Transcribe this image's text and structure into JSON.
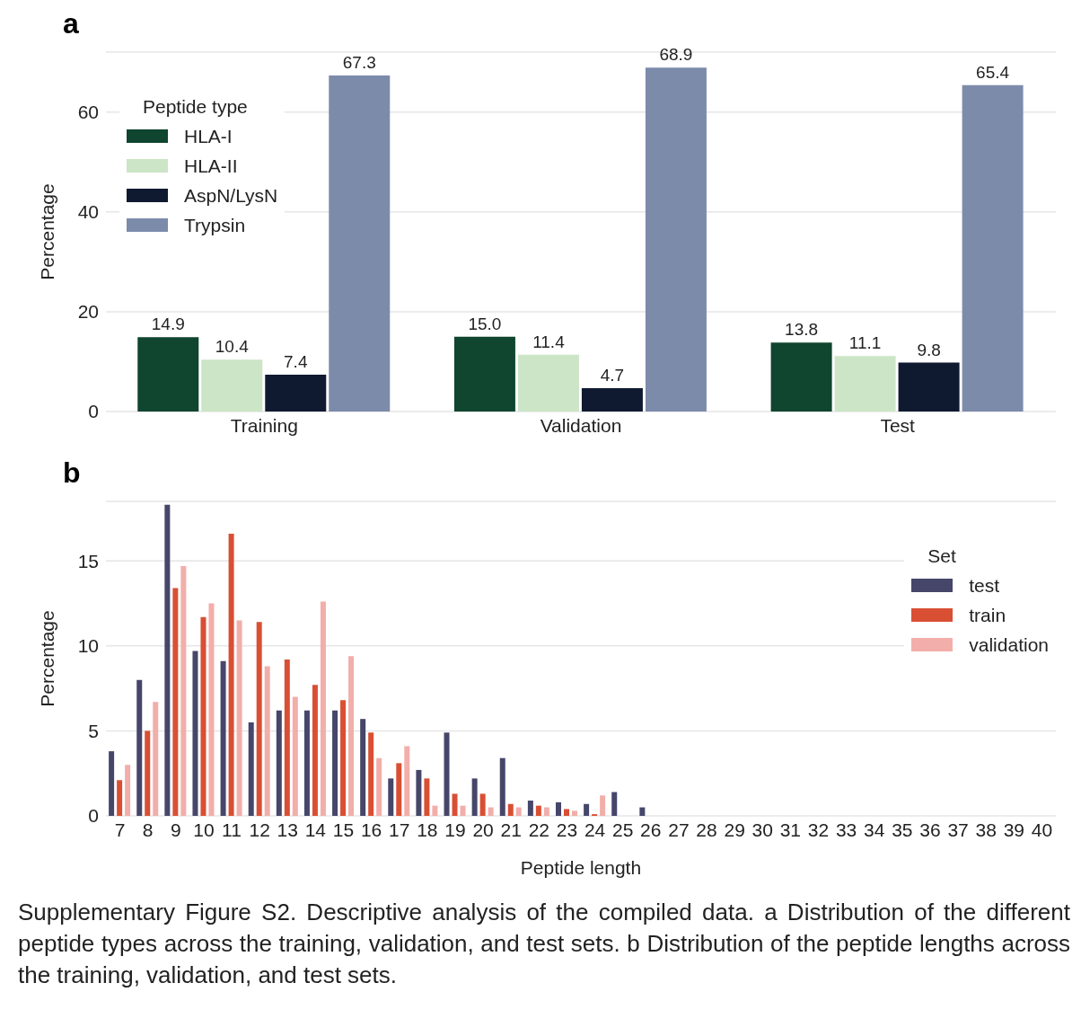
{
  "chart_data": [
    {
      "type": "bar",
      "title": "a",
      "ylabel": "Percentage",
      "categories": [
        "Training",
        "Validation",
        "Test"
      ],
      "legend_title": "Peptide type",
      "legend": "top left",
      "grid": "y",
      "ylim": [
        0,
        72
      ],
      "yticks": [
        0,
        20,
        40,
        60
      ],
      "series": [
        {
          "name": "HLA-I",
          "color": "#10452f",
          "values": [
            14.9,
            15.0,
            13.8
          ],
          "value_labels": [
            "14.9",
            "15.0",
            "13.8"
          ]
        },
        {
          "name": "HLA-II",
          "color": "#cce5c6",
          "values": [
            10.4,
            11.4,
            11.1
          ],
          "value_labels": [
            "10.4",
            "11.4",
            "11.1"
          ]
        },
        {
          "name": "AspN/LysN",
          "color": "#0f1a30",
          "values": [
            7.4,
            4.7,
            9.8
          ],
          "value_labels": [
            "7.4",
            "4.7",
            "9.8"
          ]
        },
        {
          "name": "Trypsin",
          "color": "#7d8bab",
          "values": [
            67.3,
            68.9,
            65.4
          ],
          "value_labels": [
            "67.3",
            "68.9",
            "65.4"
          ]
        }
      ]
    },
    {
      "type": "bar",
      "title": "b",
      "xlabel": "Peptide length",
      "ylabel": "Percentage",
      "legend_title": "Set",
      "legend": "top right",
      "grid": "y",
      "ylim": [
        0,
        18.5
      ],
      "yticks": [
        0,
        5,
        10,
        15
      ],
      "categories": [
        "7",
        "8",
        "9",
        "10",
        "11",
        "12",
        "13",
        "14",
        "15",
        "16",
        "17",
        "18",
        "19",
        "20",
        "21",
        "22",
        "23",
        "24",
        "25",
        "26",
        "27",
        "28",
        "29",
        "30",
        "31",
        "32",
        "33",
        "34",
        "35",
        "36",
        "37",
        "38",
        "39",
        "40"
      ],
      "series": [
        {
          "name": "test",
          "color": "#45466a",
          "values": [
            3.8,
            8.0,
            18.3,
            9.7,
            9.1,
            5.5,
            6.2,
            6.2,
            6.2,
            5.7,
            2.2,
            2.7,
            4.9,
            2.2,
            3.4,
            0.9,
            0.8,
            0.7,
            1.4,
            0.5,
            0,
            0,
            0,
            0,
            0,
            0,
            0,
            0,
            0,
            0,
            0,
            0,
            0,
            0
          ]
        },
        {
          "name": "train",
          "color": "#d94f33",
          "values": [
            2.1,
            5.0,
            13.4,
            11.7,
            16.6,
            11.4,
            9.2,
            7.7,
            6.8,
            4.9,
            3.1,
            2.2,
            1.3,
            1.3,
            0.7,
            0.6,
            0.4,
            0.1,
            0,
            0,
            0,
            0,
            0,
            0,
            0,
            0,
            0,
            0,
            0,
            0,
            0,
            0,
            0,
            0
          ]
        },
        {
          "name": "validation",
          "color": "#f2aeaa",
          "values": [
            3.0,
            6.7,
            14.7,
            12.5,
            11.5,
            8.8,
            7.0,
            12.6,
            9.4,
            3.4,
            4.1,
            0.6,
            0.6,
            0.5,
            0.5,
            0.5,
            0.3,
            1.2,
            0,
            0,
            0,
            0,
            0,
            0,
            0,
            0,
            0,
            0,
            0,
            0,
            0,
            0,
            0,
            0
          ]
        }
      ],
      "annotations": [
        "Supplementary Figure S2. Descriptive analysis of the compiled data. a Distribution of the different peptide types across the training, validation, and test sets. b Distribution of the peptide lengths across the training, validation, and test sets."
      ]
    }
  ]
}
